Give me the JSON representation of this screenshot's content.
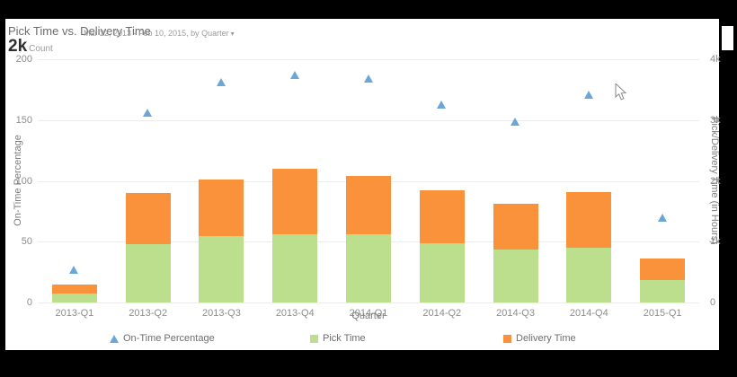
{
  "page": {
    "background": "#000000",
    "card_background": "#ffffff"
  },
  "header": {
    "title": "Pick Time vs. Delivery Time",
    "date_range": "Mar 22, 2013 - Feb 10, 2015, by Quarter",
    "dropdown_icon": "chevron-down",
    "metric_value": "2k",
    "metric_label": "Count"
  },
  "chart_data": {
    "type": "combo: stacked bar + triangle scatter",
    "categories": [
      "2013-Q1",
      "2013-Q2",
      "2013-Q3",
      "2013-Q4",
      "2014-Q1",
      "2014-Q2",
      "2014-Q3",
      "2014-Q4",
      "2015-Q1"
    ],
    "series": [
      {
        "name": "Pick Time",
        "type": "bar",
        "stack": "time",
        "axis": "right",
        "color": "#bcdf8e",
        "values": [
          150,
          960,
          1090,
          1120,
          1120,
          980,
          870,
          900,
          370
        ]
      },
      {
        "name": "Delivery Time",
        "type": "bar",
        "stack": "time",
        "axis": "right",
        "color": "#f9923b",
        "values": [
          145,
          840,
          930,
          1080,
          960,
          870,
          760,
          920,
          350
        ]
      },
      {
        "name": "On-Time Percentage",
        "type": "scatter",
        "marker": "triangle",
        "axis": "left",
        "color": "#6ba6d8",
        "values": [
          27,
          156,
          181,
          187,
          184,
          163,
          149,
          171,
          70
        ]
      }
    ],
    "left_axis": {
      "label": "On-Time Percentage",
      "min": 0,
      "max": 200,
      "ticks": [
        "0",
        "50",
        "100",
        "150",
        "200"
      ]
    },
    "right_axis": {
      "label": "Pick/Delivery Time (in Hours)",
      "min": 0,
      "max": 4000,
      "ticks": [
        "0",
        "1k",
        "2k",
        "3k",
        "4k"
      ]
    },
    "x_axis": {
      "label": "Quarter"
    },
    "grid": true,
    "legend_position": "bottom",
    "grid_color": "#ececec"
  },
  "legend": {
    "items": [
      {
        "label": "On-Time Percentage",
        "marker": "triangle",
        "color": "#6ba6d8"
      },
      {
        "label": "Pick Time",
        "marker": "square",
        "color": "#bcdf8e"
      },
      {
        "label": "Delivery Time",
        "marker": "square",
        "color": "#f9923b"
      }
    ]
  }
}
